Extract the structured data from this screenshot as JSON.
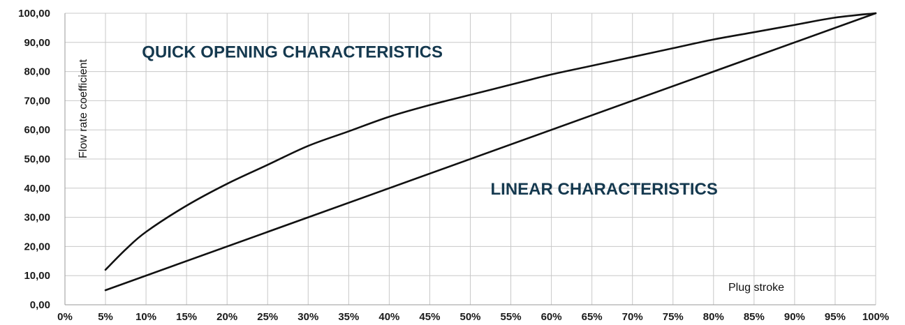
{
  "chart_data": {
    "type": "line",
    "xlabel": "Plug stroke",
    "ylabel": "Flow rate coefficient",
    "x_unit": "%",
    "xlim": [
      0,
      100
    ],
    "ylim": [
      0,
      100
    ],
    "grid": true,
    "x_ticks": [
      {
        "value": 0,
        "label": "0%"
      },
      {
        "value": 5,
        "label": "5%"
      },
      {
        "value": 10,
        "label": "10%"
      },
      {
        "value": 15,
        "label": "15%"
      },
      {
        "value": 20,
        "label": "20%"
      },
      {
        "value": 25,
        "label": "25%"
      },
      {
        "value": 30,
        "label": "30%"
      },
      {
        "value": 35,
        "label": "35%"
      },
      {
        "value": 40,
        "label": "40%"
      },
      {
        "value": 45,
        "label": "45%"
      },
      {
        "value": 50,
        "label": "50%"
      },
      {
        "value": 55,
        "label": "55%"
      },
      {
        "value": 60,
        "label": "60%"
      },
      {
        "value": 65,
        "label": "65%"
      },
      {
        "value": 70,
        "label": "70%"
      },
      {
        "value": 75,
        "label": "75%"
      },
      {
        "value": 80,
        "label": "80%"
      },
      {
        "value": 85,
        "label": "85%"
      },
      {
        "value": 90,
        "label": "90%"
      },
      {
        "value": 95,
        "label": "95%"
      },
      {
        "value": 100,
        "label": "100%"
      }
    ],
    "y_ticks": [
      {
        "value": 0,
        "label": "0,00"
      },
      {
        "value": 10,
        "label": "10,00"
      },
      {
        "value": 20,
        "label": "20,00"
      },
      {
        "value": 30,
        "label": "30,00"
      },
      {
        "value": 40,
        "label": "40,00"
      },
      {
        "value": 50,
        "label": "50,00"
      },
      {
        "value": 60,
        "label": "60,00"
      },
      {
        "value": 70,
        "label": "70,00"
      },
      {
        "value": 80,
        "label": "80,00"
      },
      {
        "value": 90,
        "label": "90,00"
      },
      {
        "value": 100,
        "label": "100,00"
      }
    ],
    "series": [
      {
        "color": "#111111",
        "x": [
          5,
          7.5,
          10,
          15,
          20,
          25,
          30,
          35,
          40,
          45,
          50,
          55,
          60,
          65,
          70,
          75,
          80,
          85,
          90,
          95,
          100
        ],
        "y": [
          12,
          19,
          25,
          34,
          41.5,
          48,
          54.5,
          59.5,
          64.5,
          68.5,
          72,
          75.5,
          79,
          82,
          85,
          88,
          91,
          93.5,
          96,
          98.5,
          100
        ]
      },
      {
        "color": "#111111",
        "x": [
          5,
          100
        ],
        "y": [
          5,
          100
        ]
      }
    ],
    "annotations": [
      {
        "text": "QUICK OPENING CHARACTERISTICS",
        "x": 9.5,
        "y": 87,
        "color": "#15394f"
      },
      {
        "text": "LINEAR CHARACTERISTICS",
        "x": 52.5,
        "y": 40,
        "color": "#15394f"
      }
    ]
  }
}
